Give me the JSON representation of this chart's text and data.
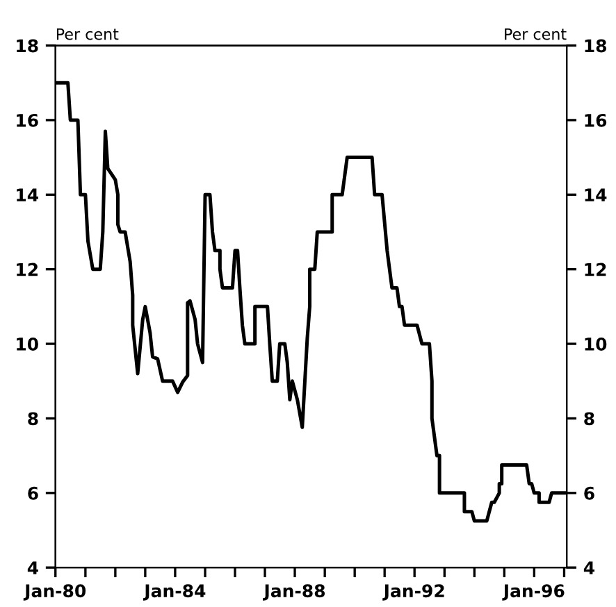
{
  "chart_data": {
    "type": "line",
    "ylabel": "Per cent",
    "y2label": "Per cent",
    "xlim": [
      "1980-01",
      "1997-02"
    ],
    "ylim": [
      4,
      18
    ],
    "yticks": [
      4,
      6,
      8,
      10,
      12,
      14,
      16,
      18
    ],
    "y2lim": [
      4,
      18
    ],
    "y2ticks": [
      4,
      6,
      8,
      10,
      12,
      14,
      16,
      18
    ],
    "xticks": [
      {
        "value": "1980-01",
        "label": "Jan-80"
      },
      {
        "value": "1981-01",
        "label": null
      },
      {
        "value": "1982-01",
        "label": null
      },
      {
        "value": "1983-01",
        "label": null
      },
      {
        "value": "1984-01",
        "label": "Jan-84"
      },
      {
        "value": "1985-01",
        "label": null
      },
      {
        "value": "1986-01",
        "label": null
      },
      {
        "value": "1987-01",
        "label": null
      },
      {
        "value": "1988-01",
        "label": "Jan-88"
      },
      {
        "value": "1989-01",
        "label": null
      },
      {
        "value": "1990-01",
        "label": null
      },
      {
        "value": "1991-01",
        "label": null
      },
      {
        "value": "1992-01",
        "label": "Jan-92"
      },
      {
        "value": "1993-01",
        "label": null
      },
      {
        "value": "1994-01",
        "label": null
      },
      {
        "value": "1995-01",
        "label": null
      },
      {
        "value": "1996-01",
        "label": "Jan-96"
      },
      {
        "value": "1997-01",
        "label": null
      }
    ],
    "grid": false,
    "marker": "none",
    "line_style": "solid",
    "series": [
      {
        "color": "#000000",
        "x": [
          "1980-01",
          "1980-06",
          "1980-07",
          "1980-10",
          "1980-11",
          "1981-01",
          "1981-02",
          "1981-04",
          "1981-07",
          "1981-08",
          "1981-09",
          "1981-10",
          "1982-01",
          "1982-02",
          "1982-02",
          "1982-03",
          "1982-05",
          "1982-07",
          "1982-08",
          "1982-08",
          "1982-10",
          "1982-12",
          "1983-01",
          "1983-03",
          "1983-04",
          "1983-06",
          "1983-08",
          "1983-12",
          "1984-02",
          "1984-04",
          "1984-06",
          "1984-06",
          "1984-07",
          "1984-09",
          "1984-10",
          "1984-12",
          "1985-01",
          "1985-03",
          "1985-04",
          "1985-05",
          "1985-07",
          "1985-07",
          "1985-08",
          "1985-12",
          "1986-01",
          "1986-02",
          "1986-03",
          "1986-04",
          "1986-05",
          "1986-09",
          "1986-09",
          "1987-02",
          "1987-03",
          "1987-04",
          "1987-06",
          "1987-07",
          "1987-09",
          "1987-10",
          "1987-11",
          "1987-12",
          "1988-02",
          "1988-04",
          "1988-06",
          "1988-07",
          "1988-07",
          "1988-09",
          "1988-10",
          "1989-04",
          "1989-04",
          "1989-08",
          "1989-10",
          "1990-08",
          "1990-09",
          "1990-12",
          "1991-02",
          "1991-04",
          "1991-06",
          "1991-07",
          "1991-08",
          "1991-09",
          "1992-02",
          "1992-04",
          "1992-07",
          "1992-08",
          "1992-08",
          "1992-10",
          "1992-11",
          "1992-11",
          "1993-09",
          "1993-09",
          "1993-12",
          "1994-01",
          "1994-06",
          "1994-08",
          "1994-09",
          "1994-11",
          "1994-11",
          "1994-12",
          "1994-12",
          "1995-10",
          "1995-11",
          "1995-12",
          "1996-01",
          "1996-03",
          "1996-03",
          "1996-07",
          "1996-08",
          "1997-02"
        ],
        "values": [
          17.0,
          17.0,
          16.0,
          16.0,
          14.0,
          14.0,
          12.75,
          12.0,
          12.0,
          13.0,
          15.7,
          14.7,
          14.4,
          14.0,
          13.2,
          13.0,
          13.0,
          12.2,
          11.3,
          10.5,
          9.2,
          10.65,
          11.0,
          10.3,
          9.65,
          9.6,
          9.0,
          9.0,
          8.7,
          8.97,
          9.15,
          11.1,
          11.15,
          10.65,
          10.0,
          9.5,
          14.0,
          14.0,
          13.0,
          12.5,
          12.5,
          12.0,
          11.5,
          11.5,
          12.5,
          12.5,
          11.5,
          10.5,
          10.0,
          10.0,
          11.0,
          11.0,
          10.0,
          9.0,
          9.0,
          10.0,
          10.0,
          9.5,
          8.5,
          9.0,
          8.5,
          7.76,
          10.15,
          11.0,
          12.0,
          12.0,
          13.0,
          13.0,
          14.0,
          14.0,
          15.0,
          15.0,
          14.0,
          14.0,
          12.5,
          11.5,
          11.5,
          11.0,
          11.0,
          10.5,
          10.5,
          10.0,
          10.0,
          9.0,
          8.0,
          7.0,
          7.0,
          6.0,
          6.0,
          5.5,
          5.5,
          5.25,
          5.25,
          5.75,
          5.75,
          6.0,
          6.25,
          6.25,
          6.75,
          6.75,
          6.25,
          6.25,
          6.0,
          6.0,
          5.75,
          5.75,
          6.0,
          6.0
        ]
      }
    ]
  }
}
